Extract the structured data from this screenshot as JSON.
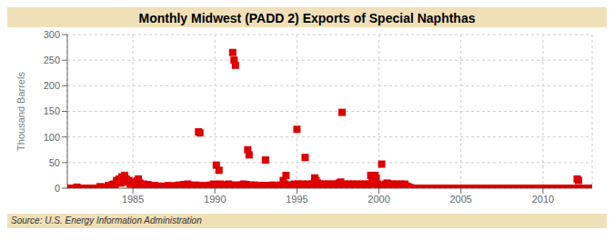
{
  "chart_data": {
    "type": "scatter",
    "title": "Monthly Midwest (PADD 2) Exports of Special Naphthas",
    "ylabel": "Thousand Barrels",
    "source": "Source: U.S. Energy Information Administration",
    "color": "#dd0000",
    "marker": "square",
    "grid": true,
    "xlim": [
      1981,
      2013
    ],
    "xticks": [
      1985,
      1990,
      1995,
      2000,
      2005,
      2010
    ],
    "ylim": [
      0,
      300
    ],
    "yticks": [
      0,
      50,
      100,
      150,
      200,
      250,
      300
    ],
    "x": [
      1981.0,
      1981.083,
      1981.167,
      1981.25,
      1981.333,
      1981.417,
      1981.5,
      1981.583,
      1981.667,
      1981.75,
      1981.833,
      1981.917,
      1982.0,
      1982.083,
      1982.167,
      1982.25,
      1982.333,
      1982.417,
      1982.5,
      1982.583,
      1982.667,
      1982.75,
      1982.833,
      1982.917,
      1983.0,
      1983.083,
      1983.167,
      1983.25,
      1983.333,
      1983.417,
      1983.5,
      1983.583,
      1983.667,
      1983.75,
      1983.833,
      1983.917,
      1984.0,
      1984.083,
      1984.167,
      1984.25,
      1984.333,
      1984.417,
      1984.5,
      1984.583,
      1984.667,
      1984.75,
      1984.833,
      1984.917,
      1985.0,
      1985.083,
      1985.167,
      1985.25,
      1985.333,
      1985.417,
      1985.5,
      1985.583,
      1985.667,
      1985.75,
      1985.833,
      1985.917,
      1986.0,
      1986.083,
      1986.167,
      1986.25,
      1986.333,
      1986.417,
      1986.5,
      1986.583,
      1986.667,
      1986.75,
      1986.833,
      1986.917,
      1987.0,
      1987.083,
      1987.167,
      1987.25,
      1987.333,
      1987.417,
      1987.5,
      1987.583,
      1987.667,
      1987.75,
      1987.833,
      1987.917,
      1988.0,
      1988.083,
      1988.167,
      1988.25,
      1988.333,
      1988.417,
      1988.5,
      1988.583,
      1988.667,
      1988.75,
      1988.833,
      1988.917,
      1989.0,
      1989.083,
      1989.167,
      1989.25,
      1989.333,
      1989.417,
      1989.5,
      1989.583,
      1989.667,
      1989.75,
      1989.833,
      1989.917,
      1990.0,
      1990.083,
      1990.167,
      1990.25,
      1990.333,
      1990.417,
      1990.5,
      1990.583,
      1990.667,
      1990.75,
      1990.833,
      1990.917,
      1991.0,
      1991.083,
      1991.167,
      1991.25,
      1991.333,
      1991.417,
      1991.5,
      1991.583,
      1991.667,
      1991.75,
      1991.833,
      1991.917,
      1992.0,
      1992.083,
      1992.167,
      1992.25,
      1992.333,
      1992.417,
      1992.5,
      1992.583,
      1992.667,
      1992.75,
      1992.833,
      1992.917,
      1993.0,
      1993.083,
      1993.167,
      1993.25,
      1993.333,
      1993.417,
      1993.5,
      1993.583,
      1993.667,
      1993.75,
      1993.833,
      1993.917,
      1994.0,
      1994.083,
      1994.167,
      1994.25,
      1994.333,
      1994.417,
      1994.5,
      1994.583,
      1994.667,
      1994.75,
      1994.833,
      1994.917,
      1995.0,
      1995.083,
      1995.167,
      1995.25,
      1995.333,
      1995.417,
      1995.5,
      1995.583,
      1995.667,
      1995.75,
      1995.833,
      1995.917,
      1996.0,
      1996.083,
      1996.167,
      1996.25,
      1996.333,
      1996.417,
      1996.5,
      1996.583,
      1996.667,
      1996.75,
      1996.833,
      1996.917,
      1997.0,
      1997.083,
      1997.167,
      1997.25,
      1997.333,
      1997.417,
      1997.5,
      1997.583,
      1997.667,
      1997.75,
      1997.833,
      1997.917,
      1998.0,
      1998.083,
      1998.167,
      1998.25,
      1998.333,
      1998.417,
      1998.5,
      1998.583,
      1998.667,
      1998.75,
      1998.833,
      1998.917,
      1999.0,
      1999.083,
      1999.167,
      1999.25,
      1999.333,
      1999.417,
      1999.5,
      1999.583,
      1999.667,
      1999.75,
      1999.833,
      1999.917,
      2000.0,
      2000.083,
      2000.167,
      2000.25,
      2000.333,
      2000.417,
      2000.5,
      2000.583,
      2000.667,
      2000.75,
      2000.833,
      2000.917,
      2001.0,
      2001.083,
      2001.167,
      2001.25,
      2001.333,
      2001.417,
      2001.5,
      2001.583,
      2001.667,
      2001.75,
      2001.833,
      2001.917,
      2002.0,
      2002.083,
      2002.167,
      2002.25,
      2002.333,
      2002.417,
      2002.5,
      2002.583,
      2002.667,
      2002.75,
      2002.833,
      2002.917,
      2003.0,
      2003.083,
      2003.167,
      2003.25,
      2003.333,
      2003.417,
      2003.5,
      2003.583,
      2003.667,
      2003.75,
      2003.833,
      2003.917,
      2004.0,
      2004.083,
      2004.167,
      2004.25,
      2004.333,
      2004.417,
      2004.5,
      2004.583,
      2004.667,
      2004.75,
      2004.833,
      2004.917,
      2005.0,
      2005.083,
      2005.167,
      2005.25,
      2005.333,
      2005.417,
      2005.5,
      2005.583,
      2005.667,
      2005.75,
      2005.833,
      2005.917,
      2006.0,
      2006.083,
      2006.167,
      2006.25,
      2006.333,
      2006.417,
      2006.5,
      2006.583,
      2006.667,
      2006.75,
      2006.833,
      2006.917,
      2007.0,
      2007.083,
      2007.167,
      2007.25,
      2007.333,
      2007.417,
      2007.5,
      2007.583,
      2007.667,
      2007.75,
      2007.833,
      2007.917,
      2008.0,
      2008.083,
      2008.167,
      2008.25,
      2008.333,
      2008.417,
      2008.5,
      2008.583,
      2008.667,
      2008.75,
      2008.833,
      2008.917,
      2009.0,
      2009.083,
      2009.167,
      2009.25,
      2009.333,
      2009.417,
      2009.5,
      2009.583,
      2009.667,
      2009.75,
      2009.833,
      2009.917,
      2010.0,
      2010.083,
      2010.167,
      2010.25,
      2010.333,
      2010.417,
      2010.5,
      2010.583,
      2010.667,
      2010.75,
      2010.833,
      2010.917,
      2011.0,
      2011.083,
      2011.167,
      2011.25,
      2011.333,
      2011.417,
      2011.5,
      2011.583,
      2011.667,
      2011.75,
      2011.833,
      2011.917,
      2012.0,
      2012.083,
      2012.167,
      2012.25,
      2012.333,
      2012.417,
      2012.5,
      2012.583,
      2012.667,
      2012.75,
      2012.833,
      2012.917
    ],
    "values": [
      0,
      0,
      0,
      0,
      0,
      0,
      0,
      2,
      0,
      0,
      0,
      0,
      0,
      0,
      0,
      0,
      0,
      0,
      0,
      0,
      0,
      0,
      0,
      0,
      3,
      0,
      0,
      2,
      0,
      0,
      5,
      4,
      3,
      7,
      8,
      5,
      15,
      12,
      18,
      10,
      22,
      20,
      25,
      18,
      12,
      15,
      8,
      10,
      12,
      8,
      5,
      14,
      18,
      10,
      6,
      4,
      8,
      5,
      3,
      7,
      5,
      3,
      2,
      4,
      5,
      3,
      4,
      2,
      3,
      2,
      4,
      3,
      2,
      3,
      5,
      4,
      3,
      2,
      4,
      3,
      5,
      4,
      6,
      5,
      4,
      7,
      5,
      3,
      8,
      6,
      4,
      3,
      5,
      4,
      6,
      5,
      110,
      108,
      4,
      3,
      5,
      4,
      3,
      5,
      4,
      6,
      5,
      8,
      7,
      45,
      6,
      35,
      8,
      6,
      5,
      4,
      6,
      5,
      8,
      4,
      6,
      265,
      250,
      240,
      6,
      5,
      4,
      6,
      5,
      8,
      6,
      7,
      75,
      65,
      6,
      5,
      4,
      6,
      5,
      4,
      3,
      5,
      4,
      3,
      5,
      55,
      4,
      3,
      5,
      4,
      6,
      5,
      4,
      3,
      5,
      4,
      6,
      5,
      15,
      8,
      25,
      6,
      5,
      4,
      6,
      5,
      8,
      6,
      115,
      8,
      6,
      5,
      8,
      6,
      60,
      5,
      8,
      6,
      5,
      8,
      6,
      20,
      15,
      10,
      5,
      8,
      6,
      5,
      8,
      6,
      5,
      8,
      6,
      5,
      8,
      6,
      5,
      8,
      6,
      10,
      12,
      148,
      5,
      8,
      6,
      5,
      8,
      6,
      5,
      8,
      6,
      5,
      8,
      6,
      5,
      8,
      6,
      5,
      8,
      6,
      5,
      8,
      25,
      15,
      8,
      25,
      20,
      8,
      6,
      5,
      47,
      6,
      5,
      8,
      10,
      8,
      6,
      5,
      8,
      6,
      5,
      8,
      6,
      5,
      8,
      6,
      5,
      8,
      4,
      3,
      2,
      1,
      0,
      0,
      0,
      0,
      0,
      0,
      0,
      0,
      0,
      0,
      0,
      0,
      0,
      0,
      0,
      0,
      0,
      0,
      0,
      0,
      0,
      0,
      0,
      0,
      0,
      0,
      0,
      0,
      0,
      0,
      0,
      0,
      0,
      0,
      0,
      0,
      0,
      0,
      0,
      0,
      0,
      0,
      0,
      0,
      0,
      0,
      0,
      0,
      0,
      0,
      0,
      0,
      0,
      0,
      0,
      0,
      0,
      0,
      0,
      0,
      0,
      0,
      0,
      0,
      0,
      0,
      0,
      0,
      0,
      0,
      0,
      0,
      0,
      0,
      0,
      0,
      0,
      0,
      0,
      0,
      0,
      0,
      0,
      0,
      0,
      0,
      0,
      0,
      0,
      0,
      0,
      0,
      0,
      0,
      0,
      0,
      0,
      0,
      0,
      0,
      0,
      0,
      0,
      0,
      0,
      0,
      0,
      0,
      0,
      0,
      0,
      0,
      0,
      0,
      0,
      0,
      0,
      0,
      0,
      0,
      0,
      18,
      15,
      0,
      0,
      0,
      0,
      0,
      0,
      0,
      0,
      0
    ]
  }
}
